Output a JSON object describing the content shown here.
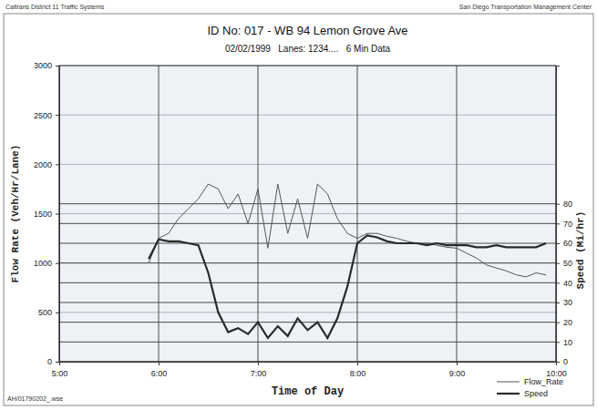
{
  "chart_data": {
    "type": "line",
    "title": "ID No: 017 - WB 94 Lemon Grove Ave",
    "subtitle": "02/02/1999   Lanes: 1234....   6 Min Data",
    "annotations": [
      "Caltrans District 11 Traffic Systems",
      "San Diego Transportation Management Center",
      "AH/01790202_.wse"
    ],
    "x_label": "Time of Day",
    "y_label": "Flow Rate (Veh/Hr/Lane)",
    "y2_label": "Speed (Mi/hr)",
    "x": [
      5.9,
      6.0,
      6.1,
      6.2,
      6.3,
      6.4,
      6.5,
      6.6,
      6.7,
      6.8,
      6.9,
      7.0,
      7.1,
      7.2,
      7.3,
      7.4,
      7.5,
      7.6,
      7.7,
      7.8,
      7.9,
      8.0,
      8.1,
      8.2,
      8.3,
      8.4,
      8.5,
      8.6,
      8.7,
      8.8,
      8.9,
      9.0,
      9.1,
      9.2,
      9.3,
      9.4,
      9.5,
      9.6,
      9.7,
      9.8,
      9.9
    ],
    "series": [
      {
        "name": "Flow_Rate",
        "color": "#555555",
        "values": [
          1000,
          1250,
          1300,
          1450,
          1550,
          1650,
          1800,
          1750,
          1550,
          1700,
          1400,
          1750,
          1150,
          1800,
          1300,
          1650,
          1250,
          1800,
          1700,
          1450,
          1300,
          1250,
          1300,
          1300,
          1270,
          1250,
          1220,
          1200,
          1200,
          1180,
          1160,
          1150,
          1100,
          1050,
          980,
          950,
          920,
          880,
          860,
          900,
          880
        ]
      },
      {
        "name": "Speed",
        "color": "#2a2a2a",
        "axis": "y2",
        "values": [
          52,
          62,
          61,
          61,
          60,
          59,
          45,
          25,
          15,
          17,
          14,
          20,
          12,
          18,
          13,
          22,
          16,
          20,
          12,
          22,
          38,
          60,
          64,
          63,
          61,
          60,
          60,
          60,
          59,
          60,
          59,
          59,
          59,
          58,
          58,
          59,
          58,
          58,
          58,
          58,
          60
        ]
      }
    ],
    "xlim": [
      5,
      10
    ],
    "xticks": [
      {
        "value": 5,
        "label": "5:00"
      },
      {
        "value": 6,
        "label": "6:00"
      },
      {
        "value": 7,
        "label": "7:00"
      },
      {
        "value": 8,
        "label": "8:00"
      },
      {
        "value": 9,
        "label": "9:00"
      },
      {
        "value": 10,
        "label": "10:00"
      }
    ],
    "ylim": [
      0,
      3000
    ],
    "yticks": [
      0,
      500,
      1000,
      1500,
      2000,
      2500,
      3000
    ],
    "y2lim": [
      0,
      150
    ],
    "y2ticks": [
      0,
      10,
      20,
      30,
      40,
      50,
      60,
      70,
      80
    ],
    "grid": true,
    "legend": "lower right"
  }
}
